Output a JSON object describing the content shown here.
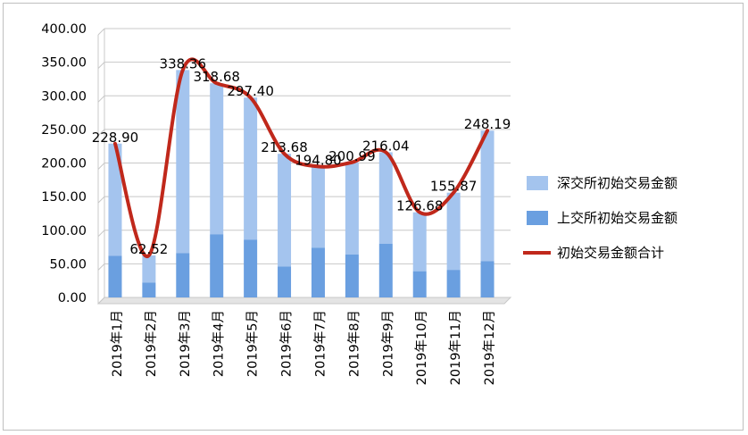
{
  "chart_data": {
    "type": "bar",
    "title": "",
    "xlabel": "",
    "ylabel": "",
    "ylim": [
      0,
      400
    ],
    "yticks": [
      "0.00",
      "50.00",
      "100.00",
      "150.00",
      "200.00",
      "250.00",
      "300.00",
      "350.00",
      "400.00"
    ],
    "grid": true,
    "legend_position": "right",
    "stacked": true,
    "categories": [
      "2019年1月",
      "2019年2月",
      "2019年3月",
      "2019年4月",
      "2019年5月",
      "2019年6月",
      "2019年7月",
      "2019年8月",
      "2019年9月",
      "2019年10月",
      "2019年11月",
      "2019年12月"
    ],
    "series": [
      {
        "name": "上交所初始交易金额",
        "type": "bar",
        "color": "#6a9fe0",
        "values": [
          62,
          22,
          66,
          94,
          86,
          46,
          74,
          64,
          80,
          39,
          41,
          54
        ]
      },
      {
        "name": "深交所初始交易金额",
        "type": "bar",
        "color": "#a4c4ee",
        "values": [
          166.9,
          40.52,
          272.36,
          224.68,
          211.4,
          167.68,
          120.8,
          136.99,
          136.04,
          87.68,
          114.87,
          194.19
        ]
      },
      {
        "name": "初始交易金额合计",
        "type": "line",
        "color": "#c0281b",
        "values": [
          228.9,
          62.52,
          338.36,
          318.68,
          297.4,
          213.68,
          194.8,
          200.99,
          216.04,
          126.68,
          155.87,
          248.19
        ],
        "labels": [
          "228.90",
          "62.52",
          "338.36",
          "318.68",
          "297.40",
          "213.68",
          "194.80",
          "200.99",
          "216.04",
          "126.68",
          "155.87",
          "248.19"
        ]
      }
    ]
  },
  "legend": [
    {
      "label": "深交所初始交易金额",
      "color": "#a4c4ee",
      "kind": "bar"
    },
    {
      "label": "上交所初始交易金额",
      "color": "#6a9fe0",
      "kind": "bar"
    },
    {
      "label": "初始交易金额合计",
      "color": "#c0281b",
      "kind": "line"
    }
  ]
}
